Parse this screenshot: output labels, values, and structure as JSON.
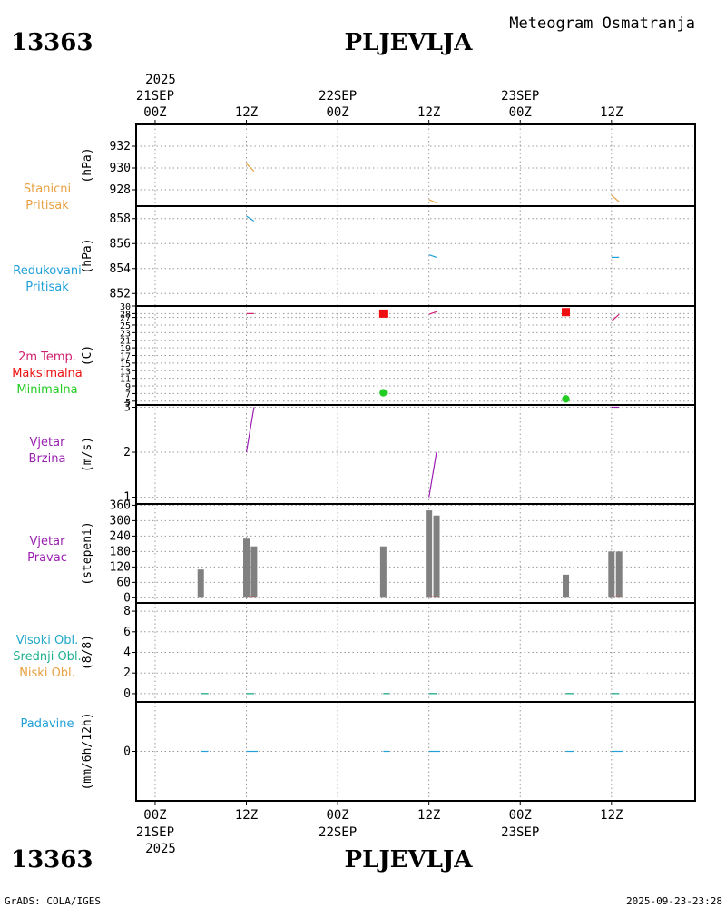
{
  "header": {
    "station_id": "13363",
    "station_name": "PLJEVLJA",
    "product_title": "Meteogram Osmatranja"
  },
  "footer": {
    "station_id": "13363",
    "station_name": "PLJEVLJA",
    "credit": "GrADS: COLA/IGES",
    "timestamp": "2025-09-23-23:28"
  },
  "time_axis": {
    "top_year": "2025",
    "bottom_year": "2025",
    "ticks": [
      {
        "h": 0,
        "hour": "00Z",
        "date": "21SEP"
      },
      {
        "h": 12,
        "hour": "12Z",
        "date": ""
      },
      {
        "h": 24,
        "hour": "00Z",
        "date": "22SEP"
      },
      {
        "h": 36,
        "hour": "12Z",
        "date": ""
      },
      {
        "h": 48,
        "hour": "00Z",
        "date": "23SEP"
      },
      {
        "h": 60,
        "hour": "12Z",
        "date": ""
      }
    ]
  },
  "colors": {
    "station_pressure": "#e8a040",
    "reduced_pressure": "#20a0d8",
    "temp_2m": "#d02070",
    "temp_max": "#ee1010",
    "temp_min": "#22cc22",
    "wind": "#9a20b0",
    "bars": "#808080",
    "clouds_high": "#20a8c8",
    "clouds_mid": "#20b090",
    "clouds_low": "#e8a040",
    "precip": "#20a0d8"
  },
  "chart_data": [
    {
      "id": "station_pressure",
      "type": "line",
      "labels": [
        "Stanicni",
        "Pritisak"
      ],
      "ylabel": "(hPa)",
      "ylim": [
        926.5,
        934
      ],
      "yticks": [
        928,
        930,
        932
      ],
      "series": [
        {
          "name": "Stanicni Pritisak",
          "segments": [
            [
              [
                12,
                930.4
              ],
              [
                13,
                929.7
              ]
            ],
            [
              [
                36,
                927.1
              ],
              [
                37,
                926.8
              ]
            ],
            [
              [
                60,
                927.5
              ],
              [
                61,
                926.9
              ]
            ]
          ]
        }
      ]
    },
    {
      "id": "reduced_pressure",
      "type": "line",
      "labels": [
        "Redukovani",
        "Pritisak"
      ],
      "ylabel": "(hPa)",
      "ylim": [
        851,
        859
      ],
      "yticks": [
        852,
        854,
        856,
        858
      ],
      "series": [
        {
          "name": "Redukovani Pritisak",
          "segments": [
            [
              [
                12,
                858.2
              ],
              [
                13,
                857.8
              ]
            ],
            [
              [
                36,
                855.1
              ],
              [
                37,
                854.9
              ]
            ],
            [
              [
                60,
                854.9
              ],
              [
                61,
                854.9
              ]
            ]
          ]
        }
      ]
    },
    {
      "id": "temperature",
      "type": "line",
      "labels": [
        "2m Temp.",
        "Maksimalna",
        "Minimalna"
      ],
      "ylabel": "(C)",
      "ylim": [
        4,
        30
      ],
      "yticks": [
        5,
        7,
        9,
        11,
        13,
        15,
        17,
        19,
        21,
        23,
        25,
        27,
        28,
        30
      ],
      "series": [
        {
          "name": "2m Temp.",
          "segments": [
            [
              [
                12,
                28
              ],
              [
                13,
                28
              ]
            ],
            [
              [
                36,
                27.8
              ],
              [
                37,
                28.5
              ]
            ],
            [
              [
                60,
                26
              ],
              [
                61,
                27.8
              ]
            ]
          ]
        },
        {
          "name": "Maksimalna",
          "points": [
            [
              30,
              28
            ],
            [
              54,
              28.4
            ]
          ]
        },
        {
          "name": "Minimalna",
          "points": [
            [
              30,
              7.2
            ],
            [
              54,
              5.6
            ]
          ]
        }
      ]
    },
    {
      "id": "wind_speed",
      "type": "line",
      "labels": [
        "Vjetar",
        "Brzina"
      ],
      "ylabel": "(m/s)",
      "ylim": [
        0.85,
        3.05
      ],
      "yticks": [
        1,
        2,
        3
      ],
      "series": [
        {
          "name": "Vjetar Brzina",
          "segments": [
            [
              [
                12,
                2
              ],
              [
                13,
                3
              ]
            ],
            [
              [
                36,
                1
              ],
              [
                37,
                2
              ]
            ],
            [
              [
                60,
                3
              ],
              [
                61,
                3
              ]
            ]
          ]
        }
      ]
    },
    {
      "id": "wind_direction",
      "type": "bar",
      "labels": [
        "Vjetar",
        "Pravac"
      ],
      "ylabel": "(stepeni)",
      "ylim": [
        -20,
        365
      ],
      "yticks": [
        0,
        60,
        120,
        180,
        240,
        300,
        360
      ],
      "series": [
        {
          "name": "Vjetar Pravac",
          "x": [
            6,
            12,
            13,
            30,
            36,
            37,
            54,
            60,
            61
          ],
          "values": [
            110,
            230,
            200,
            200,
            340,
            320,
            90,
            180,
            180
          ]
        }
      ]
    },
    {
      "id": "clouds",
      "type": "line",
      "labels": [
        "Visoki Obl.",
        "Srednji Obl.",
        "Niski Obl."
      ],
      "ylabel": "(8/8)",
      "ylim": [
        -0.8,
        8.8
      ],
      "yticks": [
        0,
        2,
        4,
        6,
        8
      ],
      "series": [
        {
          "name": "Visoki Obl.",
          "segments": [
            [
              [
                6,
                0
              ],
              [
                7,
                0
              ]
            ],
            [
              [
                12,
                0
              ],
              [
                13,
                0
              ]
            ],
            [
              [
                30,
                0
              ],
              [
                30.8,
                0
              ]
            ],
            [
              [
                36,
                0
              ],
              [
                37,
                0
              ]
            ],
            [
              [
                54,
                0
              ],
              [
                55,
                0
              ]
            ],
            [
              [
                60,
                0
              ],
              [
                61,
                0
              ]
            ]
          ]
        },
        {
          "name": "Srednji Obl.",
          "segments": [
            [
              [
                6,
                0
              ],
              [
                7,
                0
              ]
            ],
            [
              [
                12,
                0
              ],
              [
                13,
                0
              ]
            ],
            [
              [
                30,
                0
              ],
              [
                30.8,
                0
              ]
            ],
            [
              [
                36,
                0
              ],
              [
                37,
                0
              ]
            ],
            [
              [
                54,
                0
              ],
              [
                55,
                0
              ]
            ],
            [
              [
                60,
                0
              ],
              [
                61,
                0
              ]
            ]
          ]
        },
        {
          "name": "Niski Obl.",
          "segments": [
            [
              [
                6,
                0
              ],
              [
                7,
                0
              ]
            ],
            [
              [
                12,
                0
              ],
              [
                13,
                0
              ]
            ],
            [
              [
                30,
                0
              ],
              [
                30.8,
                0
              ]
            ],
            [
              [
                36,
                0
              ],
              [
                37,
                0
              ]
            ],
            [
              [
                54,
                0
              ],
              [
                55,
                0
              ]
            ],
            [
              [
                60,
                0
              ],
              [
                61,
                0
              ]
            ]
          ]
        }
      ]
    },
    {
      "id": "precipitation",
      "type": "line",
      "labels": [
        "Padavine"
      ],
      "ylabel": "(mm/6h/12h)",
      "ylim": [
        -5,
        5
      ],
      "yticks": [
        0
      ],
      "series": [
        {
          "name": "Padavine",
          "segments": [
            [
              [
                6,
                0
              ],
              [
                7,
                0
              ]
            ],
            [
              [
                12,
                0
              ],
              [
                13.5,
                0
              ]
            ],
            [
              [
                30,
                0
              ],
              [
                30.8,
                0
              ]
            ],
            [
              [
                36,
                0
              ],
              [
                37.5,
                0
              ]
            ],
            [
              [
                54,
                0
              ],
              [
                55,
                0
              ]
            ],
            [
              [
                60,
                0
              ],
              [
                61.5,
                0
              ]
            ]
          ]
        }
      ]
    }
  ]
}
